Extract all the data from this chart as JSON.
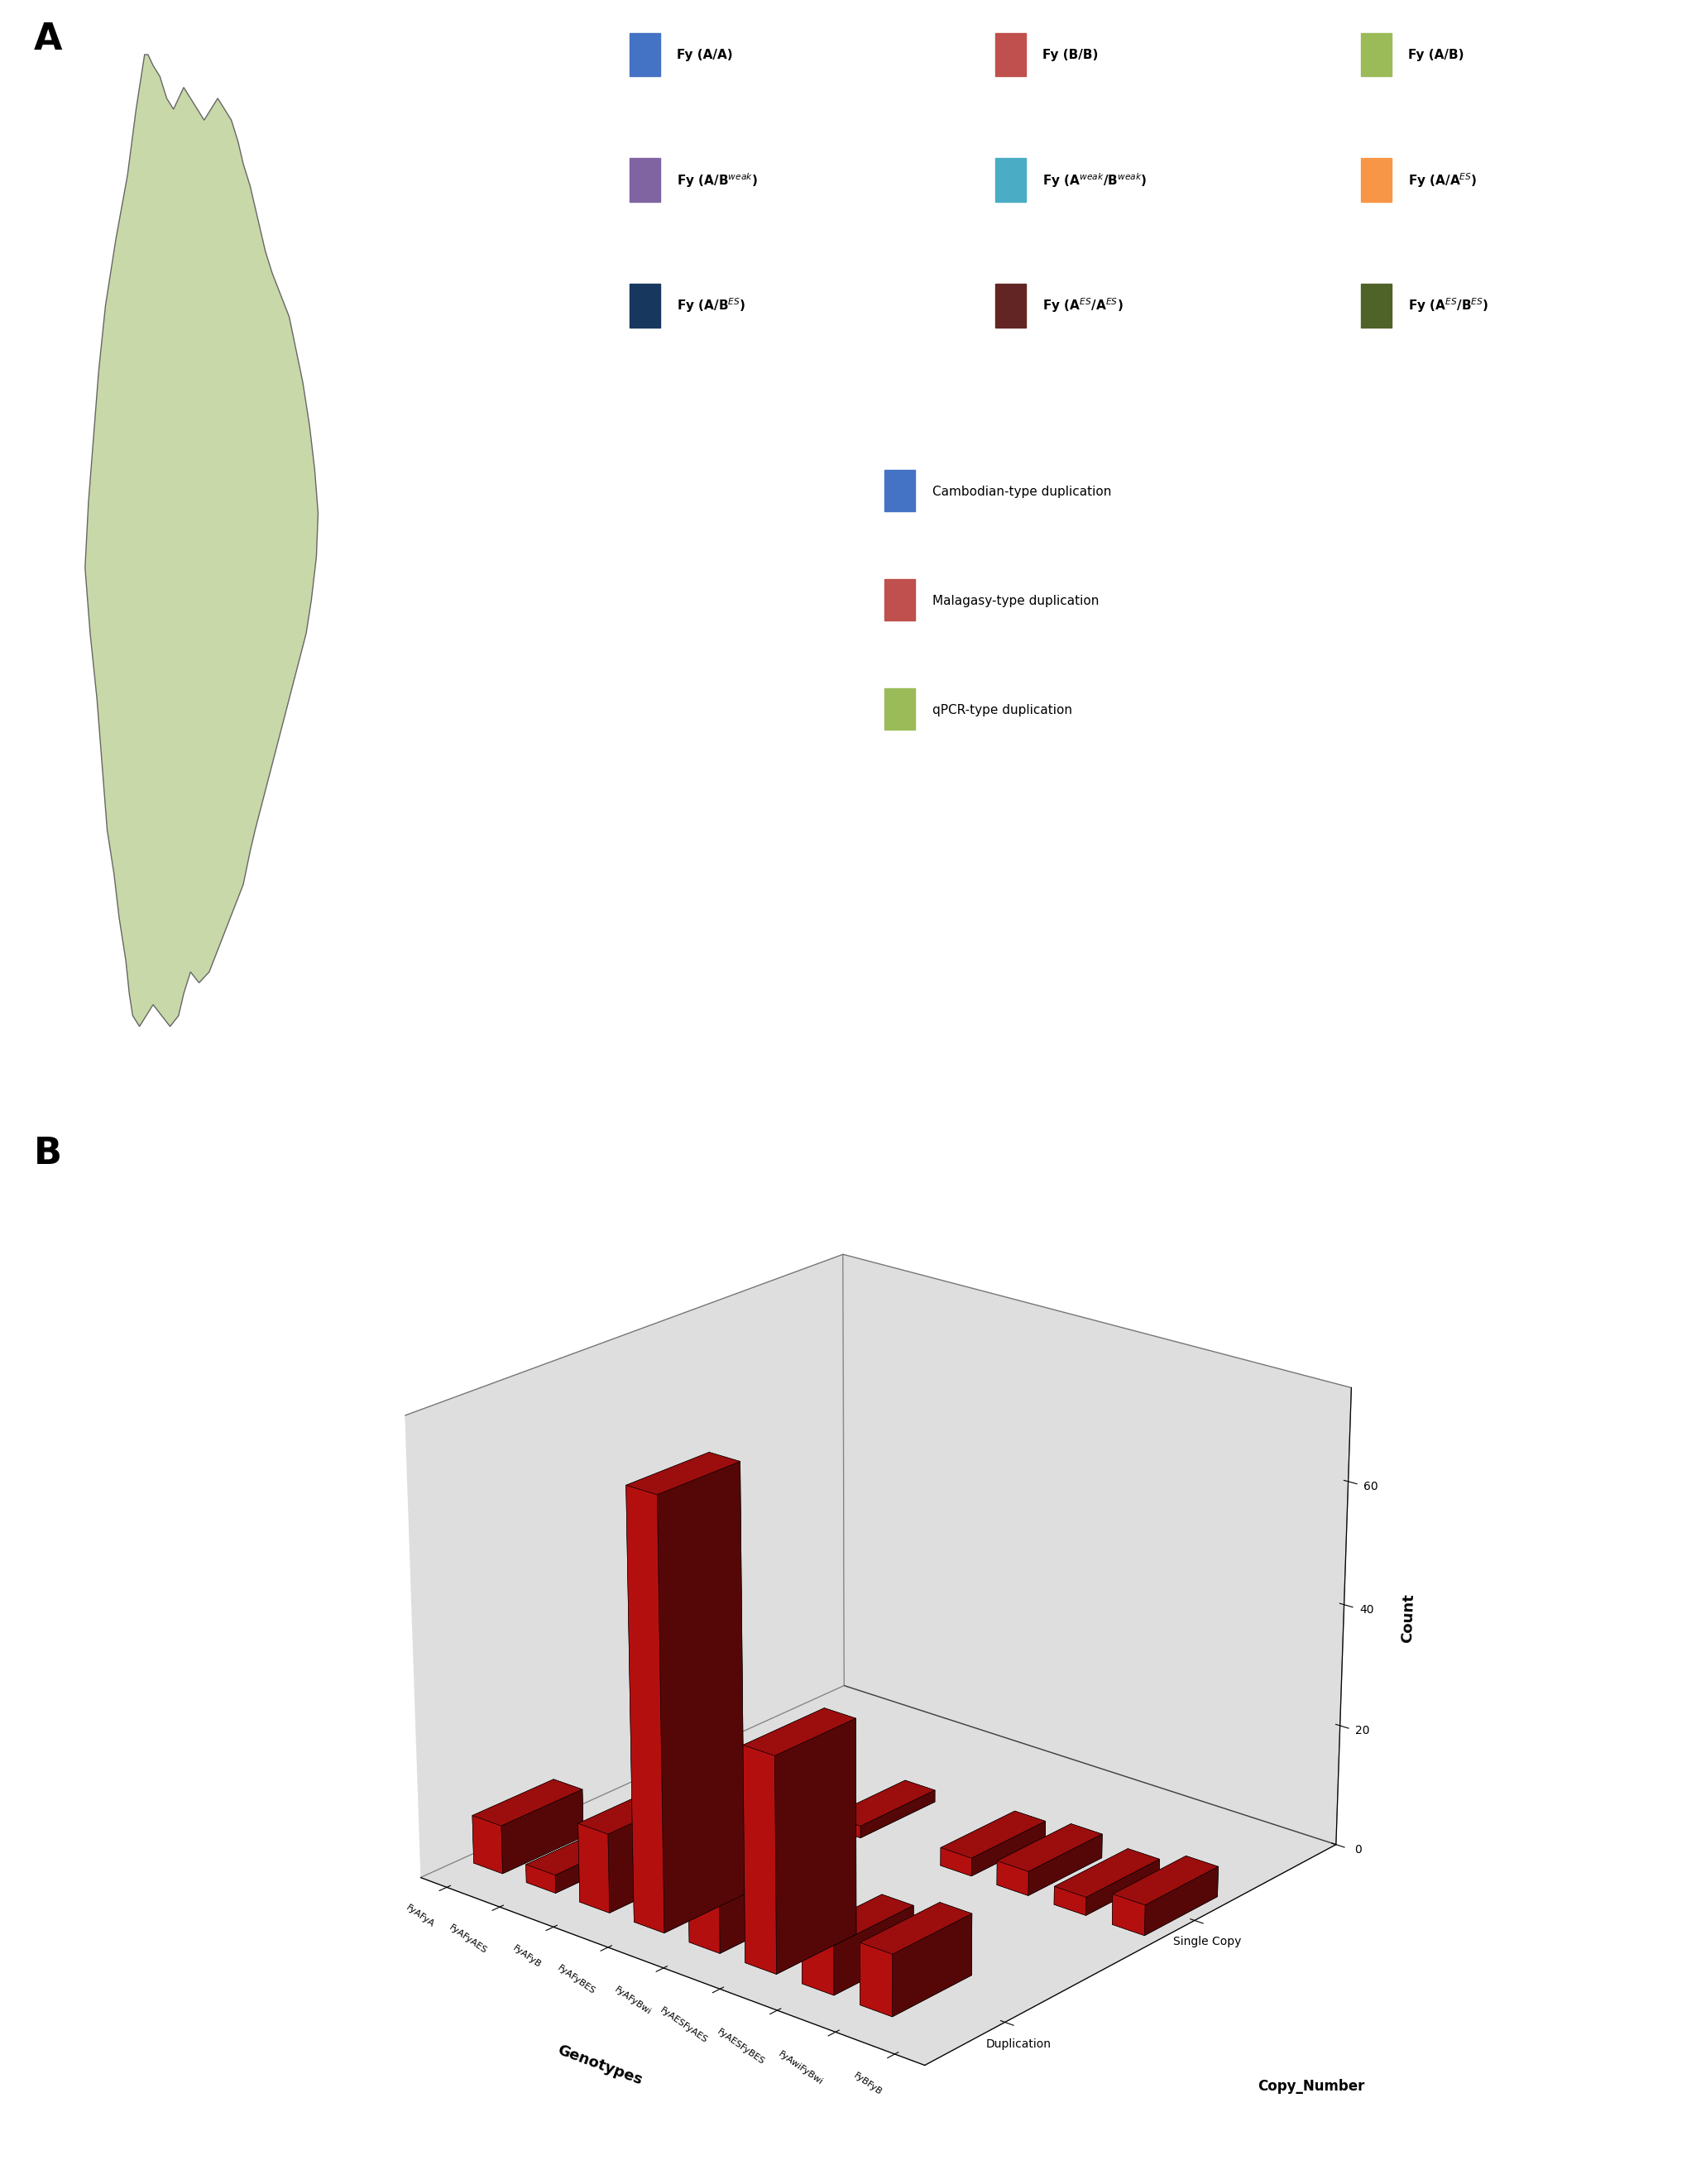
{
  "title_A": "A",
  "title_B": "B",
  "bar3d": {
    "genotypes": [
      "FyAFyA",
      "FyAFyAES",
      "FyAFyB",
      "FyAFyBES",
      "FyAFyBwi",
      "FyAESFyAES",
      "FyAESFyBES",
      "FyAwiFyBwi",
      "FyBFyB"
    ],
    "copy_numbers": [
      "Duplication",
      "Single Copy"
    ],
    "counts_duplication": [
      8,
      3,
      13,
      70,
      10,
      35,
      8,
      10,
      0
    ],
    "counts_single_copy": [
      0,
      0,
      0,
      2,
      0,
      3,
      4,
      3,
      5
    ],
    "bar_color": "#CC1111",
    "edge_color": "#000000",
    "ylabel": "Count",
    "xlabel": "Genotypes",
    "zlabel": "Copy_Number",
    "yticks": [
      0,
      20,
      40,
      60
    ],
    "ymax": 75,
    "bg_color": "#BEBEBE"
  },
  "genotype_labels": [
    "FyAFyA",
    "FyAFyAES",
    "FyAFyB",
    "FyAFyBES",
    "FyAFyBwi",
    "FyAESFyAES",
    "FyAESFyBES",
    "FyAwiFyBwi",
    "FyBFyB"
  ],
  "legend_genotypes": [
    {
      "label": "Fy (A/A)",
      "color": "#4472C4",
      "row": 0,
      "col": 0
    },
    {
      "label": "Fy (B/B)",
      "color": "#C0504D",
      "row": 0,
      "col": 1
    },
    {
      "label": "Fy (A/B)",
      "color": "#9BBB59",
      "row": 0,
      "col": 2
    },
    {
      "label": "Fy (A/B^weak)",
      "color": "#8064A2",
      "row": 1,
      "col": 0
    },
    {
      "label": "Fy (A^weak/B^weak)",
      "color": "#4BACC6",
      "row": 1,
      "col": 1
    },
    {
      "label": "Fy (A/A^ES)",
      "color": "#F79646",
      "row": 1,
      "col": 2
    },
    {
      "label": "Fy (A/B^ES)",
      "color": "#17375E",
      "row": 2,
      "col": 0
    },
    {
      "label": "Fy (A^ES/A^ES)",
      "color": "#632523",
      "row": 2,
      "col": 1
    },
    {
      "label": "Fy (A^ES/B^ES)",
      "color": "#4F6228",
      "row": 2,
      "col": 2
    }
  ],
  "legend_duplication": [
    {
      "label": "Cambodian-type duplication",
      "color": "#4472C4"
    },
    {
      "label": "Malagasy-type duplication",
      "color": "#C0504D"
    },
    {
      "label": "qPCR-type duplication",
      "color": "#9BBB59"
    }
  ]
}
